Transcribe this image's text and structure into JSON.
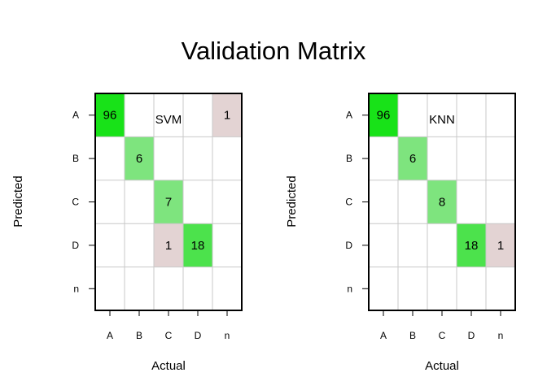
{
  "chart_data": {
    "type": "heatmap",
    "title": "Validation Matrix",
    "colors": {
      "high": "#18e218",
      "medium_high": "#4ce24c",
      "medium": "#7ee47e",
      "off_diagonal": "#e3d3d3",
      "grid": "#c8c8c8",
      "border": "#000000"
    },
    "panels": [
      {
        "name": "SVM",
        "xlabel": "Actual",
        "ylabel": "Predicted",
        "x_categories": [
          "A",
          "B",
          "C",
          "D",
          "n"
        ],
        "y_categories": [
          "A",
          "B",
          "C",
          "D",
          "n"
        ],
        "cells": [
          {
            "actual": "A",
            "predicted": "A",
            "value": 96,
            "color": "#18e218"
          },
          {
            "actual": "n",
            "predicted": "A",
            "value": 1,
            "color": "#e3d3d3"
          },
          {
            "actual": "B",
            "predicted": "B",
            "value": 6,
            "color": "#7ee47e"
          },
          {
            "actual": "C",
            "predicted": "C",
            "value": 7,
            "color": "#7ee47e"
          },
          {
            "actual": "C",
            "predicted": "D",
            "value": 1,
            "color": "#e3d3d3"
          },
          {
            "actual": "D",
            "predicted": "D",
            "value": 18,
            "color": "#4ce24c"
          }
        ]
      },
      {
        "name": "KNN",
        "xlabel": "Actual",
        "ylabel": "Predicted",
        "x_categories": [
          "A",
          "B",
          "C",
          "D",
          "n"
        ],
        "y_categories": [
          "A",
          "B",
          "C",
          "D",
          "n"
        ],
        "cells": [
          {
            "actual": "A",
            "predicted": "A",
            "value": 96,
            "color": "#18e218"
          },
          {
            "actual": "B",
            "predicted": "B",
            "value": 6,
            "color": "#7ee47e"
          },
          {
            "actual": "C",
            "predicted": "C",
            "value": 8,
            "color": "#7ee47e"
          },
          {
            "actual": "D",
            "predicted": "D",
            "value": 18,
            "color": "#4ce24c"
          },
          {
            "actual": "n",
            "predicted": "D",
            "value": 1,
            "color": "#e3d3d3"
          }
        ]
      }
    ]
  }
}
